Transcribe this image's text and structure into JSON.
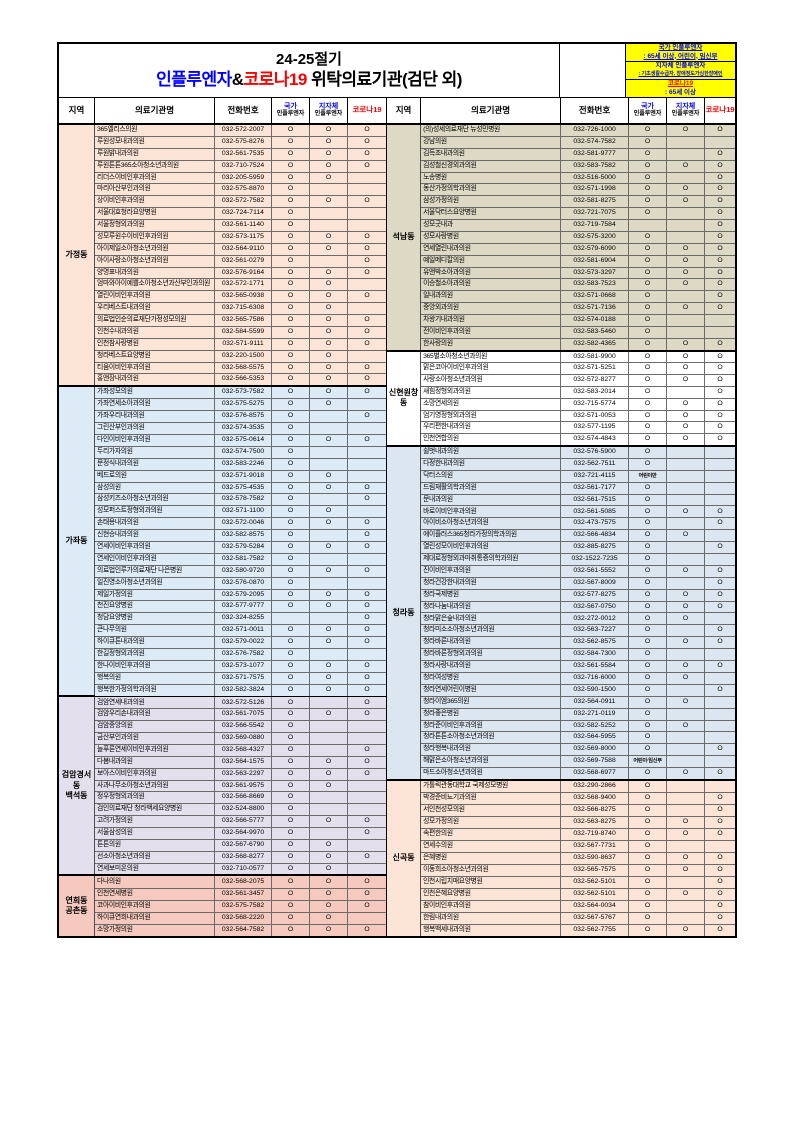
{
  "title": {
    "line1": "24-25절기",
    "line2": {
      "influenza": "인플루엔자",
      "ampersand": "&",
      "covid": "코로나19",
      "suffix": " 위탁의료기관(검단 외)"
    },
    "influenza_color": "#0000ff",
    "covid_color": "#ff0000"
  },
  "legend": {
    "background": "#ffff00",
    "lines": [
      {
        "text": "국가 인플루엔자",
        "color": "#0000ff",
        "underline": true,
        "small": false,
        "divider": false
      },
      {
        "text": ": 65세 이상, 어린이, 임신부",
        "color": "#0000ff",
        "underline": true,
        "small": false,
        "divider": true
      },
      {
        "text": "지자체 인플루엔자",
        "color": "#0000ff",
        "underline": false,
        "small": false,
        "divider": false
      },
      {
        "text": ": 기초생활수급자, 장애정도가심한장애인",
        "color": "#0000ff",
        "underline": true,
        "small": true,
        "divider": true
      },
      {
        "text": "코로나19",
        "color": "#ff0000",
        "underline": true,
        "small": false,
        "divider": false
      },
      {
        "text": ": 65세 이상",
        "color": "#0000ff",
        "underline": false,
        "small": false,
        "divider": false
      }
    ]
  },
  "column_headers": {
    "region": "지역",
    "institution": "의료기관명",
    "phone": "전화번호",
    "national_flu_line1": "국가",
    "national_flu_line2": "인플루엔자",
    "local_flu_line1": "지자체",
    "local_flu_line2": "인플루엔자",
    "covid": "코로나19",
    "national_color": "#0000ff",
    "local_color": "#0000ff",
    "covid_color": "#ff0000"
  },
  "tables": {
    "left": [
      {
        "region": "가정동",
        "background": "#fce4d6",
        "rows": [
          [
            "365엘리스의원",
            "032-572-2007",
            "O",
            "O",
            "O"
          ],
          [
            "루원성모내과의원",
            "032-575-8276",
            "O",
            "O",
            "O"
          ],
          [
            "루원밝내과의원",
            "032-561-7535",
            "O",
            "O",
            "O"
          ],
          [
            "루원튼튼365소아청소년과의원",
            "032-710-7524",
            "O",
            "O",
            "O"
          ],
          [
            "리더스이비인후과의원",
            "032-205-5959",
            "O",
            "O",
            ""
          ],
          [
            "마리아산부인과의원",
            "032-575-8870",
            "O",
            "",
            ""
          ],
          [
            "상이비인후과의원",
            "032-572-7582",
            "O",
            "O",
            "O"
          ],
          [
            "서울대효청라요양병원",
            "032-724-7114",
            "O",
            "",
            ""
          ],
          [
            "서울정형외과의원",
            "032-561-1140",
            "O",
            "",
            ""
          ],
          [
            "성모루원수이비인후과의원",
            "032-573-1175",
            "O",
            "O",
            "O"
          ],
          [
            "아이제일소아청소년과의원",
            "032-564-9110",
            "O",
            "O",
            "O"
          ],
          [
            "아이사랑소아청소년과의원",
            "032-561-0279",
            "O",
            "",
            "O"
          ],
          [
            "양명표내과의원",
            "032-576-9164",
            "O",
            "O",
            "O"
          ],
          [
            "엄마와아이예쁠소아청소년과산부인과의원",
            "032-572-1771",
            "O",
            "O",
            ""
          ],
          [
            "열린이비인후과의원",
            "032-565-0938",
            "O",
            "O",
            "O"
          ],
          [
            "우리베스트내과의원",
            "032-715-6308",
            "O",
            "O",
            ""
          ],
          [
            "의료법인순의료재단가정성모의원",
            "032-565-7586",
            "O",
            "O",
            "O"
          ],
          [
            "인천수내과의원",
            "032-584-5599",
            "O",
            "O",
            "O"
          ],
          [
            "인천참사랑병원",
            "032-571-9111",
            "O",
            "O",
            "O"
          ],
          [
            "청라베스트요양병원",
            "032-220-1500",
            "O",
            "O",
            ""
          ],
          [
            "티움이비인후과의원",
            "032-568-5575",
            "O",
            "O",
            "O"
          ],
          [
            "홍앤장내과의원",
            "032-566-5353",
            "O",
            "O",
            "O"
          ]
        ]
      },
      {
        "region": "가좌동",
        "background": "#ddebf7",
        "rows": [
          [
            "가좌성모의원",
            "032-573-7582",
            "O",
            "O",
            "O"
          ],
          [
            "가좌연세소아과의원",
            "032-575-5275",
            "O",
            "O",
            ""
          ],
          [
            "가좌우리내과의원",
            "032-576-8575",
            "O",
            "",
            "O"
          ],
          [
            "그린산부인과의원",
            "032-574-3535",
            "O",
            "",
            ""
          ],
          [
            "다인이비인후과의원",
            "032-575-0614",
            "O",
            "O",
            "O"
          ],
          [
            "두리가자의원",
            "032-574-7500",
            "O",
            "",
            ""
          ],
          [
            "문정식내과의원",
            "032-583-2246",
            "O",
            "",
            ""
          ],
          [
            "베드로의원",
            "032-571-9018",
            "O",
            "O",
            ""
          ],
          [
            "삼성의원",
            "032-575-4535",
            "O",
            "O",
            "O"
          ],
          [
            "삼성키즈소아청소년과의원",
            "032-578-7582",
            "O",
            "",
            "O"
          ],
          [
            "성모퍼스트정형외과의원",
            "032-571-1100",
            "O",
            "O",
            ""
          ],
          [
            "손태용내과의원",
            "032-572-0046",
            "O",
            "O",
            "O"
          ],
          [
            "신현승내과의원",
            "032-582-8575",
            "O",
            "",
            "O"
          ],
          [
            "연세이비인후과의원",
            "032-579-5284",
            "O",
            "O",
            "O"
          ],
          [
            "연세인이비인후과의원",
            "032-581-7582",
            "O",
            "",
            ""
          ],
          [
            "의료법인루가의료재단 나은병원",
            "032-580-9720",
            "O",
            "O",
            "O"
          ],
          [
            "일진영소아청소년과의원",
            "032-576-0870",
            "O",
            "",
            ""
          ],
          [
            "제일가정의원",
            "032-579-2095",
            "O",
            "O",
            "O"
          ],
          [
            "천진요양병원",
            "032-577-9777",
            "O",
            "O",
            "O"
          ],
          [
            "청담요양병원",
            "032-324-8255",
            "",
            "",
            "O"
          ],
          [
            "큰나무의원",
            "032-571-0011",
            "O",
            "O",
            "O"
          ],
          [
            "하이큐튼내과의원",
            "032-579-0022",
            "O",
            "O",
            "O"
          ],
          [
            "한길정형외과의원",
            "032-576-7582",
            "O",
            "",
            ""
          ],
          [
            "한나이비인후과의원",
            "032-573-1077",
            "O",
            "O",
            "O"
          ],
          [
            "행복의원",
            "032-571-7575",
            "O",
            "O",
            "O"
          ],
          [
            "행복한가정의학과의원",
            "032-582-3824",
            "O",
            "O",
            "O"
          ]
        ]
      },
      {
        "region": "검암경서동\n백석동",
        "background": "#e4dfec",
        "rows": [
          [
            "검암연세내과의원",
            "032-572-5126",
            "O",
            "",
            "O"
          ],
          [
            "검암우리손내과의원",
            "032-561-7075",
            "O",
            "O",
            "O"
          ],
          [
            "검암중앙의원",
            "032-566-5542",
            "O",
            "",
            ""
          ],
          [
            "금산부인과의원",
            "032-569-0880",
            "O",
            "",
            ""
          ],
          [
            "늘푸른연세이비인후과의원",
            "032-568-4327",
            "O",
            "",
            "O"
          ],
          [
            "다봄내과의원",
            "032-564-1575",
            "O",
            "O",
            "O"
          ],
          [
            "보아스이비인후과의원",
            "032-563-2297",
            "O",
            "O",
            "O"
          ],
          [
            "사과나무소아청소년과의원",
            "032-561-9575",
            "O",
            "O",
            ""
          ],
          [
            "정우정형외과의원",
            "032-566-8669",
            "O",
            "",
            ""
          ],
          [
            "검인의료재단 청라백세요양병원",
            "032-524-8800",
            "O",
            "",
            ""
          ],
          [
            "고려가정의원",
            "032-566-5777",
            "O",
            "O",
            "O"
          ],
          [
            "서울삼성의원",
            "032-564-9970",
            "O",
            "",
            "O"
          ],
          [
            "튼튼의원",
            "032-567-6790",
            "O",
            "O",
            ""
          ],
          [
            "선소아청소년과의원",
            "032-568-8277",
            "O",
            "O",
            "O"
          ],
          [
            "연세보미온의원",
            "032-710-0577",
            "O",
            "O",
            ""
          ]
        ]
      },
      {
        "region": "연희동\n공촌동",
        "background": "#f5c9bd",
        "rows": [
          [
            "다나의원",
            "032-568-2075",
            "O",
            "O",
            "O"
          ],
          [
            "인천연세병원",
            "032-561-3457",
            "O",
            "O",
            "O"
          ],
          [
            "코아이비인후과의원",
            "032-575-7582",
            "O",
            "O",
            "O"
          ],
          [
            "하이큐연희내과의원",
            "032-568-2220",
            "O",
            "O",
            ""
          ],
          [
            "소망가정의원",
            "032-564-7582",
            "O",
            "O",
            "O"
          ]
        ]
      }
    ],
    "right": [
      {
        "region": "석남동",
        "background": "#ddd9c4",
        "rows": [
          [
            "(의)성세의료재단 뉴성민병원",
            "032-726-1000",
            "O",
            "O",
            "O"
          ],
          [
            "강남의원",
            "032-574-7582",
            "O",
            "",
            ""
          ],
          [
            "김득조내과의원",
            "032-581-9777",
            "O",
            "",
            "O"
          ],
          [
            "김성철신경외과의원",
            "032-583-7582",
            "O",
            "O",
            "O"
          ],
          [
            "노송병원",
            "032-516-5000",
            "O",
            "",
            "O"
          ],
          [
            "동산가정의학과의원",
            "032-571-1998",
            "O",
            "O",
            "O"
          ],
          [
            "삼성가정의원",
            "032-581-8275",
            "O",
            "O",
            "O"
          ],
          [
            "서울닥터스요양병원",
            "032-721-7075",
            "O",
            "",
            "O"
          ],
          [
            "성모굿내과",
            "032-719-7584",
            "",
            "",
            "O"
          ],
          [
            "성모사랑병원",
            "032-575-3200",
            "O",
            "",
            "O"
          ],
          [
            "연세열린내과의원",
            "032-579-6090",
            "O",
            "O",
            "O"
          ],
          [
            "예일메디칼의원",
            "032-581-6904",
            "O",
            "O",
            "O"
          ],
          [
            "유앤박소아과의원",
            "032-573-3297",
            "O",
            "O",
            "O"
          ],
          [
            "이승철소아과의원",
            "032-583-7523",
            "O",
            "O",
            "O"
          ],
          [
            "일내과의원",
            "032-571-0668",
            "O",
            "",
            "O"
          ],
          [
            "중앙외과의원",
            "032-571-7136",
            "O",
            "O",
            "O"
          ],
          [
            "차왕기내과의원",
            "032-574-0188",
            "O",
            "",
            ""
          ],
          [
            "전이비인후과의원",
            "032-583-5460",
            "O",
            "",
            ""
          ],
          [
            "한사랑의원",
            "032-582-4365",
            "O",
            "O",
            "O"
          ]
        ]
      },
      {
        "region": "신현원창동",
        "background": "#ffffff",
        "rows": [
          [
            "365별소아청소년과의원",
            "032-581-9900",
            "O",
            "O",
            "O"
          ],
          [
            "맑은코아이비인후과의원",
            "032-571-5251",
            "O",
            "O",
            "O"
          ],
          [
            "사랑소아청소년과의원",
            "032-572-8277",
            "O",
            "O",
            "O"
          ],
          [
            "새힘정형외과의원",
            "032-583-2014",
            "O",
            "",
            "O"
          ],
          [
            "소망연세의원",
            "032-715-5774",
            "O",
            "O",
            "O"
          ],
          [
            "엄기영정형외과의원",
            "032-571-0053",
            "O",
            "O",
            "O"
          ],
          [
            "우리편한내과의원",
            "032-577-1195",
            "O",
            "O",
            "O"
          ],
          [
            "인천연합의원",
            "032-574-4843",
            "O",
            "O",
            "O"
          ]
        ]
      },
      {
        "region": "청라동",
        "background": "#dce6f1",
        "rows": [
          [
            "쉴벗내과의원",
            "032-576-5900",
            "O",
            "",
            ""
          ],
          [
            "다정한내과의원",
            "032-562-7511",
            "O",
            "",
            ""
          ],
          [
            "닥터스의원",
            "032-721-4115",
            "어린이만",
            "",
            ""
          ],
          [
            "드림재활의학과의원",
            "032-561-7177",
            "O",
            "",
            ""
          ],
          [
            "문내과의원",
            "032-561-7515",
            "O",
            "",
            ""
          ],
          [
            "바로이비인후과의원",
            "032-561-5085",
            "O",
            "O",
            "O"
          ],
          [
            "아이비소아청소년과의원",
            "032-473-7575",
            "O",
            "",
            "O"
          ],
          [
            "에이플러스365청라가정의학과의원",
            "032-566-4834",
            "O",
            "O",
            ""
          ],
          [
            "열린성모이비인후과의원",
            "032-885-8275",
            "O",
            "",
            "O"
          ],
          [
            "제대로정형외과마취통증의학과의원",
            "032-1522-7235",
            "O",
            "",
            ""
          ],
          [
            "진이비인후과의원",
            "032-561-5552",
            "O",
            "O",
            "O"
          ],
          [
            "청라건강한내과의원",
            "032-567-8009",
            "O",
            "",
            "O"
          ],
          [
            "청라국제병원",
            "032-577-8275",
            "O",
            "O",
            "O"
          ],
          [
            "청라나눔내과의원",
            "032-567-0750",
            "O",
            "O",
            "O"
          ],
          [
            "청라맑은숲내과의원",
            "032-272-0012",
            "O",
            "O",
            ""
          ],
          [
            "청라미소소아청소년과의원",
            "032-563-7227",
            "O",
            "",
            "O"
          ],
          [
            "청라바른내과의원",
            "032-562-8575",
            "O",
            "O",
            "O"
          ],
          [
            "청라바른정형외과의원",
            "032-584-7300",
            "O",
            "",
            ""
          ],
          [
            "청라사랑내과의원",
            "032-561-5584",
            "O",
            "O",
            "O"
          ],
          [
            "청라여성병원",
            "032-716-6000",
            "O",
            "O",
            ""
          ],
          [
            "청라연세어린이병원",
            "032-590-1500",
            "O",
            "",
            "O"
          ],
          [
            "청라이엠365의원",
            "032-564-0911",
            "O",
            "O",
            ""
          ],
          [
            "청라좋은병원",
            "032-271-0119",
            "O",
            "",
            ""
          ],
          [
            "청라준이비인후과의원",
            "032-582-5252",
            "O",
            "O",
            ""
          ],
          [
            "청라튼튼소아청소년과의원",
            "032-564-5955",
            "O",
            "",
            ""
          ],
          [
            "청라행복내과의원",
            "032-569-8000",
            "O",
            "",
            "O"
          ],
          [
            "해맑은소아청소년과의원",
            "032-569-7588",
            "어린이·임신부",
            "",
            ""
          ],
          [
            "마드소아청소년과의원",
            "032-568-6977",
            "O",
            "O",
            "O"
          ]
        ]
      },
      {
        "region": "신곡동",
        "background": "#fce4d6",
        "rows": [
          [
            "가톨릭관동대학교 국제성모병원",
            "032-290-2866",
            "O",
            "",
            ""
          ],
          [
            "박경준비뇨기과의원",
            "032-568-9400",
            "O",
            "",
            "O"
          ],
          [
            "서인천성모의원",
            "032-566-8275",
            "O",
            "",
            "O"
          ],
          [
            "성모가정의원",
            "032-563-8275",
            "O",
            "O",
            "O"
          ],
          [
            "속편한의원",
            "032-719-8740",
            "O",
            "O",
            "O"
          ],
          [
            "연세수의원",
            "032-567-7731",
            "O",
            "",
            ""
          ],
          [
            "은혜병원",
            "032-590-8637",
            "O",
            "O",
            "O"
          ],
          [
            "이동희소아청소년과의원",
            "032-565-7575",
            "O",
            "O",
            "O"
          ],
          [
            "인천시립치매요양병원",
            "032-562-5101",
            "O",
            "",
            "O"
          ],
          [
            "인천은혜요양병원",
            "032-562-5101",
            "O",
            "O",
            "O"
          ],
          [
            "참이비인후과의원",
            "032-564-0034",
            "O",
            "",
            "O"
          ],
          [
            "한림내과의원",
            "032-567-5767",
            "O",
            "",
            "O"
          ],
          [
            "행복백세내과의원",
            "032-562-7755",
            "O",
            "O",
            "O"
          ]
        ]
      }
    ]
  }
}
